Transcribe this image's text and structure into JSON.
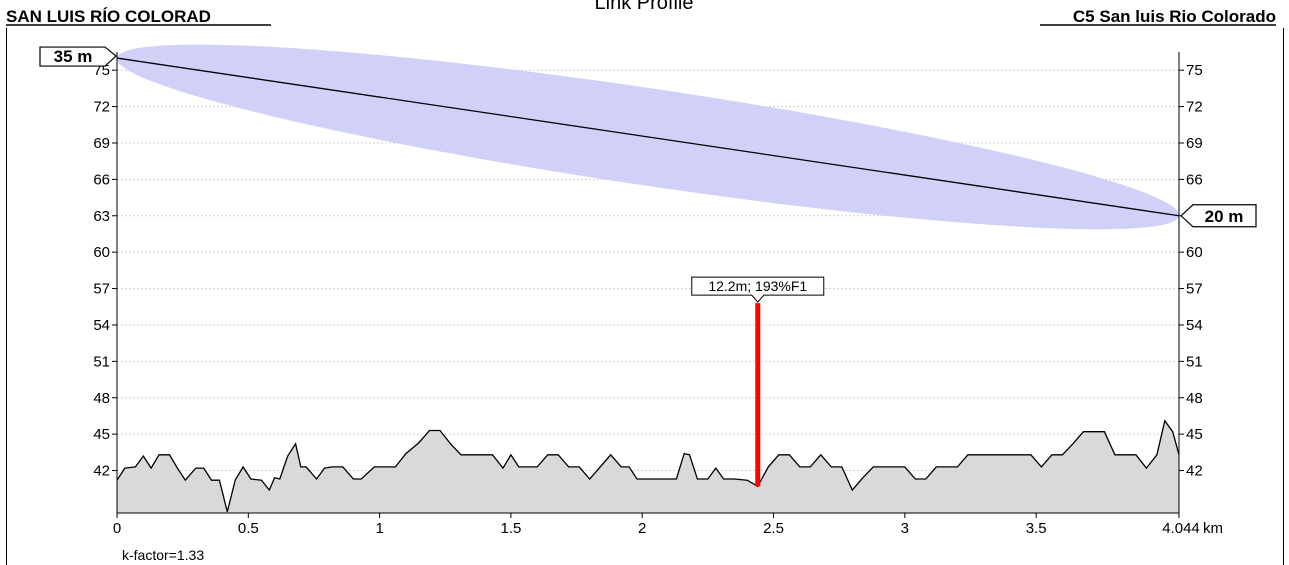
{
  "chart_data": {
    "type": "area",
    "title": "Link Profile",
    "left_site": "SAN LUIS RÍO COLORAD",
    "right_site": "C5 San luis Rio Colorado",
    "left_antenna_label": "35 m",
    "right_antenna_label": "20 m",
    "obstruction_label": "12.2m; 193%F1",
    "k_factor_label": "k-factor=1.33",
    "x_unit": "km",
    "xlim": [
      0,
      4.044
    ],
    "ylim": [
      38.5,
      76.5
    ],
    "x_ticks": [
      "0",
      "0.5",
      "1",
      "1.5",
      "2",
      "2.5",
      "3",
      "3.5",
      "4.044"
    ],
    "y_ticks": [
      42,
      45,
      48,
      51,
      54,
      57,
      60,
      63,
      66,
      69,
      72,
      75
    ],
    "grid": true,
    "los_start_elev": 76.0,
    "los_end_elev": 63.0,
    "fresnel_half_width": 4.0,
    "obstruction_x": 2.44,
    "obstruction_bottom": 40.7,
    "obstruction_top": 55.8,
    "terrain_color": "#d9d9d9",
    "fresnel_color": "#d0d0f8",
    "obstruction_color": "#ff0000",
    "terrain": {
      "x": [
        0,
        0.03,
        0.07,
        0.1,
        0.13,
        0.16,
        0.2,
        0.23,
        0.26,
        0.3,
        0.33,
        0.36,
        0.39,
        0.42,
        0.45,
        0.48,
        0.51,
        0.55,
        0.58,
        0.6,
        0.62,
        0.65,
        0.68,
        0.7,
        0.72,
        0.76,
        0.79,
        0.82,
        0.86,
        0.9,
        0.93,
        0.98,
        1.02,
        1.06,
        1.1,
        1.15,
        1.19,
        1.23,
        1.27,
        1.31,
        1.35,
        1.39,
        1.43,
        1.47,
        1.5,
        1.53,
        1.56,
        1.6,
        1.64,
        1.68,
        1.72,
        1.76,
        1.8,
        1.84,
        1.88,
        1.92,
        1.95,
        1.98,
        2.01,
        2.05,
        2.09,
        2.13,
        2.16,
        2.18,
        2.21,
        2.25,
        2.28,
        2.31,
        2.35,
        2.4,
        2.44,
        2.48,
        2.52,
        2.56,
        2.6,
        2.64,
        2.68,
        2.72,
        2.76,
        2.8,
        2.84,
        2.88,
        2.92,
        2.96,
        3.0,
        3.04,
        3.08,
        3.12,
        3.16,
        3.2,
        3.24,
        3.28,
        3.32,
        3.36,
        3.4,
        3.44,
        3.48,
        3.52,
        3.56,
        3.6,
        3.64,
        3.68,
        3.72,
        3.76,
        3.8,
        3.84,
        3.88,
        3.92,
        3.96,
        3.99,
        4.02,
        4.044
      ],
      "y": [
        41.2,
        42.2,
        42.3,
        43.2,
        42.2,
        43.3,
        43.3,
        42.2,
        41.2,
        42.2,
        42.2,
        41.2,
        41.2,
        38.6,
        41.2,
        42.3,
        41.3,
        41.2,
        40.4,
        41.4,
        41.3,
        43.2,
        44.2,
        42.3,
        42.3,
        41.3,
        42.2,
        42.3,
        42.3,
        41.3,
        41.3,
        42.3,
        42.3,
        42.3,
        43.4,
        44.3,
        45.3,
        45.3,
        44.2,
        43.3,
        43.3,
        43.3,
        43.3,
        42.2,
        43.3,
        42.3,
        42.3,
        42.3,
        43.3,
        43.3,
        42.3,
        42.3,
        41.3,
        42.3,
        43.3,
        42.3,
        42.3,
        41.3,
        41.3,
        41.3,
        41.3,
        41.3,
        43.4,
        43.3,
        41.3,
        41.3,
        42.2,
        41.3,
        41.3,
        41.2,
        40.7,
        42.3,
        43.3,
        43.3,
        42.3,
        42.3,
        43.3,
        42.3,
        42.3,
        40.4,
        41.4,
        42.3,
        42.3,
        42.3,
        42.3,
        41.3,
        41.3,
        42.3,
        42.3,
        42.3,
        43.3,
        43.3,
        43.3,
        43.3,
        43.3,
        43.3,
        43.3,
        42.3,
        43.3,
        43.3,
        44.2,
        45.2,
        45.2,
        45.2,
        43.3,
        43.3,
        43.3,
        42.2,
        43.3,
        46.1,
        45.2,
        43.3
      ]
    }
  }
}
